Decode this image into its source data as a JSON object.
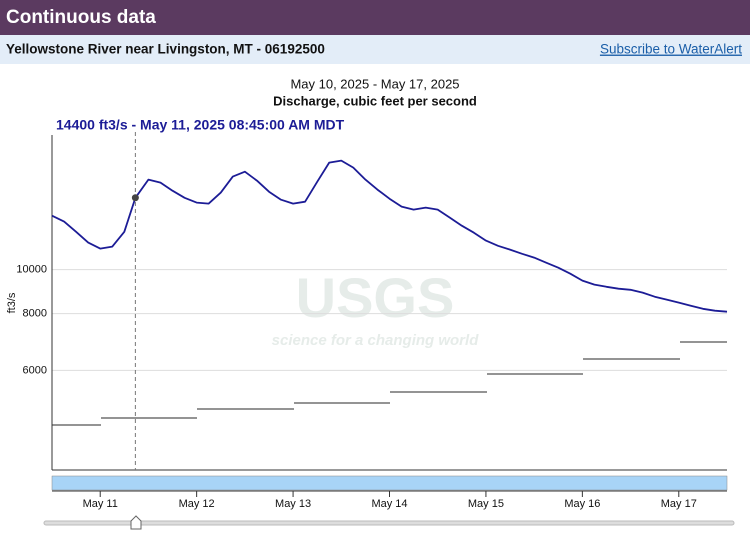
{
  "header": {
    "title": "Continuous data"
  },
  "site": {
    "name": "Yellowstone River near Livingston, MT - 06192500",
    "link": "Subscribe to WaterAlert"
  },
  "watermark": {
    "logo": "USGS",
    "tagline": "science for a changing world"
  },
  "chart_data": {
    "type": "line",
    "subtitle": "May 10, 2025 - May 17, 2025",
    "title": "Discharge, cubic feet per second",
    "tooltip": "14400 ft3/s - May 11, 2025 08:45:00 AM MDT",
    "y_label": "ft3/s",
    "log_scale": true,
    "grid": true,
    "x": [
      "2025-05-10T12:00",
      "2025-05-10T15:00",
      "2025-05-10T18:00",
      "2025-05-10T21:00",
      "2025-05-11T00:00",
      "2025-05-11T03:00",
      "2025-05-11T06:00",
      "2025-05-11T08:45",
      "2025-05-11T12:00",
      "2025-05-11T15:00",
      "2025-05-11T18:00",
      "2025-05-11T21:00",
      "2025-05-12T00:00",
      "2025-05-12T03:00",
      "2025-05-12T06:00",
      "2025-05-12T09:00",
      "2025-05-12T12:00",
      "2025-05-12T15:00",
      "2025-05-12T18:00",
      "2025-05-12T21:00",
      "2025-05-13T00:00",
      "2025-05-13T03:00",
      "2025-05-13T06:00",
      "2025-05-13T09:00",
      "2025-05-13T12:00",
      "2025-05-13T15:00",
      "2025-05-13T18:00",
      "2025-05-13T21:00",
      "2025-05-14T00:00",
      "2025-05-14T03:00",
      "2025-05-14T06:00",
      "2025-05-14T09:00",
      "2025-05-14T12:00",
      "2025-05-14T15:00",
      "2025-05-14T18:00",
      "2025-05-14T21:00",
      "2025-05-15T00:00",
      "2025-05-15T03:00",
      "2025-05-15T06:00",
      "2025-05-15T09:00",
      "2025-05-15T12:00",
      "2025-05-15T15:00",
      "2025-05-15T18:00",
      "2025-05-15T21:00",
      "2025-05-16T00:00",
      "2025-05-16T03:00",
      "2025-05-16T06:00",
      "2025-05-16T09:00",
      "2025-05-16T12:00",
      "2025-05-16T15:00",
      "2025-05-16T18:00",
      "2025-05-16T21:00",
      "2025-05-17T00:00",
      "2025-05-17T03:00",
      "2025-05-17T06:00",
      "2025-05-17T09:00",
      "2025-05-17T12:00"
    ],
    "series": [
      {
        "name": "Discharge",
        "color": "#1c1c96",
        "values": [
          13150,
          12760,
          12120,
          11470,
          11130,
          11240,
          12120,
          14400,
          15790,
          15550,
          14930,
          14400,
          14050,
          13980,
          14780,
          16030,
          16440,
          15710,
          14850,
          14260,
          13980,
          14120,
          15620,
          17210,
          17390,
          16780,
          15790,
          15010,
          14330,
          13770,
          13560,
          13700,
          13560,
          13020,
          12500,
          12060,
          11590,
          11290,
          11070,
          10840,
          10630,
          10360,
          10100,
          9800,
          9460,
          9270,
          9170,
          9080,
          9030,
          8900,
          8720,
          8590,
          8460,
          8330,
          8200,
          8120,
          8080
        ]
      }
    ],
    "xlim": [
      "2025-05-10T12:00",
      "2025-05-17T12:00"
    ],
    "xticks": [
      {
        "value": "2025-05-11T00:00",
        "label": "May 11"
      },
      {
        "value": "2025-05-12T00:00",
        "label": "May 12"
      },
      {
        "value": "2025-05-13T00:00",
        "label": "May 13"
      },
      {
        "value": "2025-05-14T00:00",
        "label": "May 14"
      },
      {
        "value": "2025-05-15T00:00",
        "label": "May 15"
      },
      {
        "value": "2025-05-16T00:00",
        "label": "May 16"
      },
      {
        "value": "2025-05-17T00:00",
        "label": "May 17"
      }
    ],
    "ylim": [
      3620,
      19800
    ],
    "yticks": [
      6000,
      8000,
      10000
    ]
  }
}
